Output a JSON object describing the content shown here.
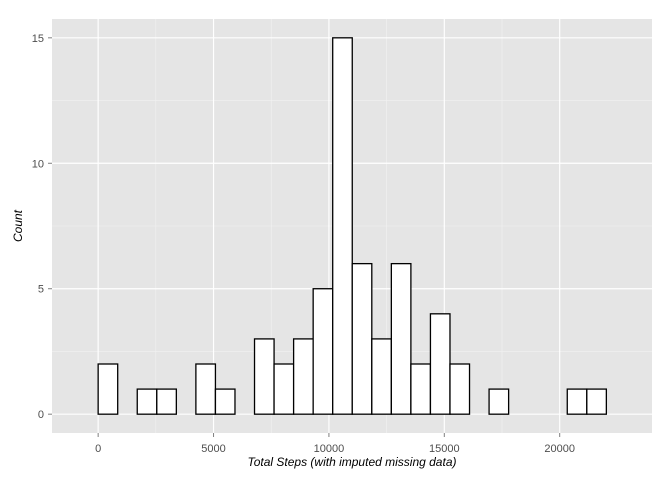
{
  "chart_data": {
    "type": "bar",
    "subtype": "histogram",
    "title": "",
    "xlabel": "Total Steps (with imputed missing data)",
    "ylabel": "Count",
    "bin_width": 847,
    "bin_start": -847,
    "counts": [
      0,
      2,
      0,
      1,
      1,
      0,
      2,
      1,
      0,
      3,
      2,
      3,
      5,
      15,
      6,
      3,
      6,
      2,
      4,
      2,
      0,
      1,
      0,
      0,
      0,
      1,
      1,
      0
    ],
    "xlim": [
      -2000,
      24000
    ],
    "ylim": [
      -0.75,
      15.75
    ],
    "x_ticks": [
      0,
      5000,
      10000,
      15000,
      20000
    ],
    "x_tick_labels": [
      "0",
      "5000",
      "10000",
      "15000",
      "20000"
    ],
    "y_ticks": [
      0,
      5,
      10,
      15
    ],
    "y_tick_labels": [
      "0",
      "5",
      "10",
      "15"
    ],
    "grid": true,
    "colors": {
      "panel_background": "#e5e5e5",
      "grid_major": "#ffffff",
      "grid_minor": "#f2f2f2",
      "bar_fill": "#ffffff",
      "bar_outline": "#000000",
      "tick_text": "#4d4d4d"
    }
  }
}
